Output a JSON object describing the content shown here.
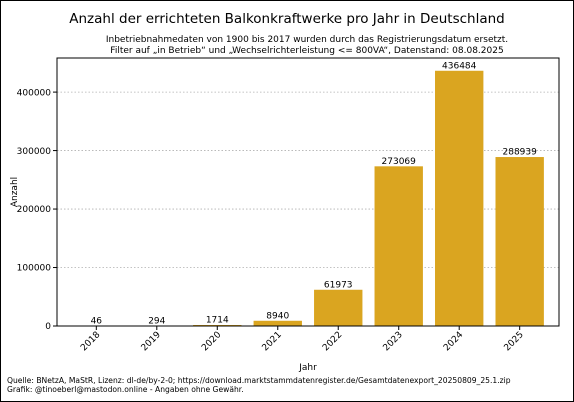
{
  "chart_data": {
    "type": "bar",
    "title": "Anzahl der errichteten Balkonkraftwerke pro Jahr in Deutschland",
    "subtitle_lines": [
      "Inbetriebnahmedaten von 1900 bis 2017 wurden durch das Registrierungsdatum ersetzt.",
      "Filter auf „in Betrieb“ und „Wechselrichterleistung <= 800VA“, Datenstand: 08.08.2025"
    ],
    "xlabel": "Jahr",
    "ylabel": "Anzahl",
    "categories": [
      "2018",
      "2019",
      "2020",
      "2021",
      "2022",
      "2023",
      "2024",
      "2025"
    ],
    "values": [
      46,
      294,
      1714,
      8940,
      61973,
      273069,
      436484,
      288939
    ],
    "data_labels": [
      "46",
      "294",
      "1714",
      "8940",
      "61973",
      "273069",
      "436484",
      "288939"
    ],
    "yticks": [
      0,
      100000,
      200000,
      300000,
      400000
    ],
    "ytick_labels": [
      "0",
      "100000",
      "200000",
      "300000",
      "400000"
    ],
    "ylim": [
      0,
      458308
    ],
    "grid": "horizontal dotted",
    "bar_color": "#DAA520"
  },
  "footer": {
    "line1": "Quelle: BNetzA, MaStR, Lizenz: dl-de/by-2-0; https://download.marktstammdatenregister.de/Gesamtdatenexport_20250809_25.1.zip",
    "line2": "Grafik: @tinoeberl@mastodon.online - Angaben ohne Gewähr."
  }
}
